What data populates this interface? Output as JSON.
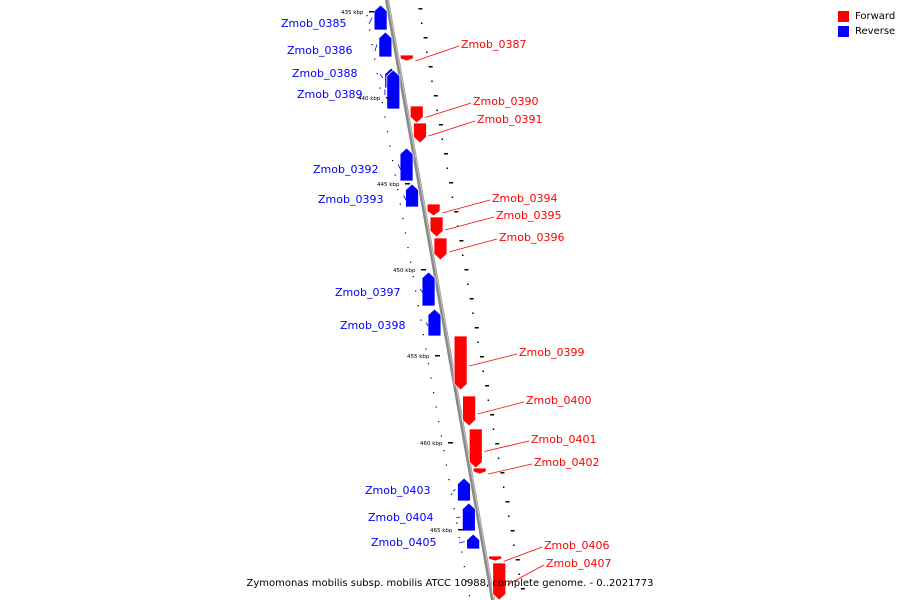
{
  "legend": {
    "forward_label": "Forward",
    "reverse_label": "Reverse",
    "forward_color": "#ff0000",
    "reverse_color": "#0000ff"
  },
  "caption": "Zymomonas mobilis subsp. mobilis ATCC 10988, complete genome. - 0..2021773",
  "scale_labels": [
    "435 kbp",
    "440 kbp",
    "445 kbp",
    "450 kbp",
    "455 kbp",
    "460 kbp",
    "465 kbp"
  ],
  "genes": [
    {
      "name": "Zmob_0385",
      "strand": "reverse"
    },
    {
      "name": "Zmob_0386",
      "strand": "reverse"
    },
    {
      "name": "Zmob_0387",
      "strand": "forward"
    },
    {
      "name": "Zmob_0388",
      "strand": "reverse"
    },
    {
      "name": "Zmob_0389",
      "strand": "reverse"
    },
    {
      "name": "Zmob_0390",
      "strand": "forward"
    },
    {
      "name": "Zmob_0391",
      "strand": "forward"
    },
    {
      "name": "Zmob_0392",
      "strand": "reverse"
    },
    {
      "name": "Zmob_0393",
      "strand": "reverse"
    },
    {
      "name": "Zmob_0394",
      "strand": "forward"
    },
    {
      "name": "Zmob_0395",
      "strand": "forward"
    },
    {
      "name": "Zmob_0396",
      "strand": "forward"
    },
    {
      "name": "Zmob_0397",
      "strand": "reverse"
    },
    {
      "name": "Zmob_0398",
      "strand": "reverse"
    },
    {
      "name": "Zmob_0399",
      "strand": "forward"
    },
    {
      "name": "Zmob_0400",
      "strand": "forward"
    },
    {
      "name": "Zmob_0401",
      "strand": "forward"
    },
    {
      "name": "Zmob_0402",
      "strand": "forward"
    },
    {
      "name": "Zmob_0403",
      "strand": "reverse"
    },
    {
      "name": "Zmob_0404",
      "strand": "reverse"
    },
    {
      "name": "Zmob_0405",
      "strand": "reverse"
    },
    {
      "name": "Zmob_0406",
      "strand": "forward"
    },
    {
      "name": "Zmob_0407",
      "strand": "forward"
    }
  ]
}
